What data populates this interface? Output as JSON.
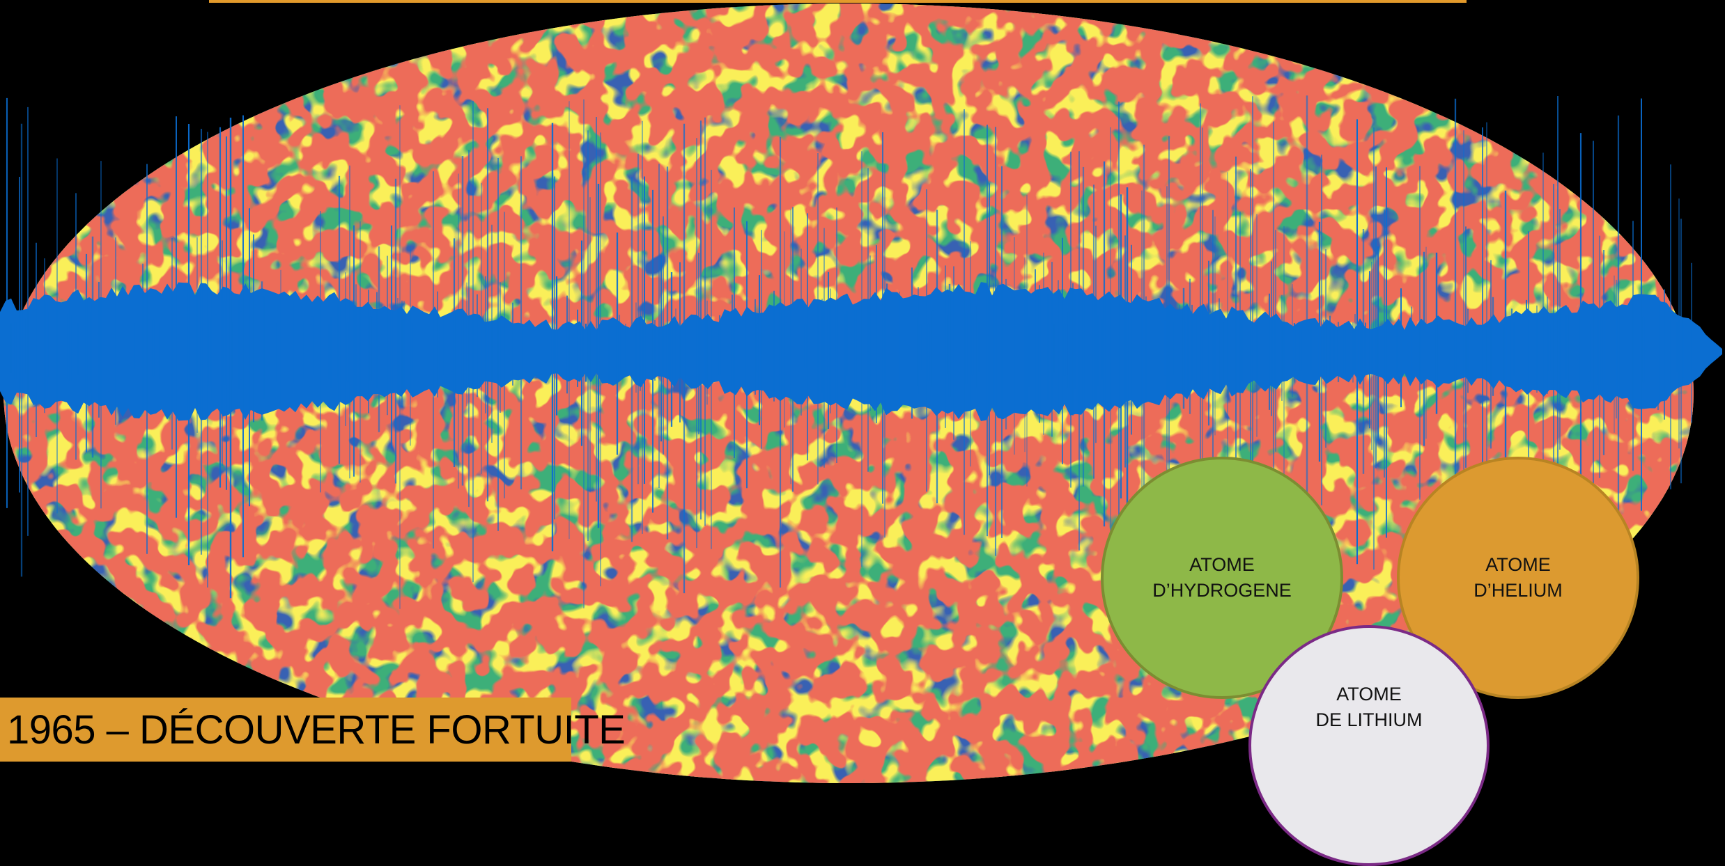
{
  "slide": {
    "title": "1965 – DÉCOUVERTE FORTUITE",
    "atoms": {
      "hydrogen": {
        "line1": "ATOME",
        "line2": "D’HYDROGENE"
      },
      "helium": {
        "line1": "ATOME",
        "line2": "D’HELIUM"
      },
      "lithium": {
        "line1": "ATOME",
        "line2": "DE LITHIUM"
      }
    }
  },
  "colors": {
    "background": "#000000",
    "accent_orange": "#de9a2e",
    "hydrogen_green": "#8eb848",
    "lithium_gray": "#e9e8ec",
    "lithium_border": "#7b2a86",
    "waveform_blue": "#0b6ed1"
  }
}
